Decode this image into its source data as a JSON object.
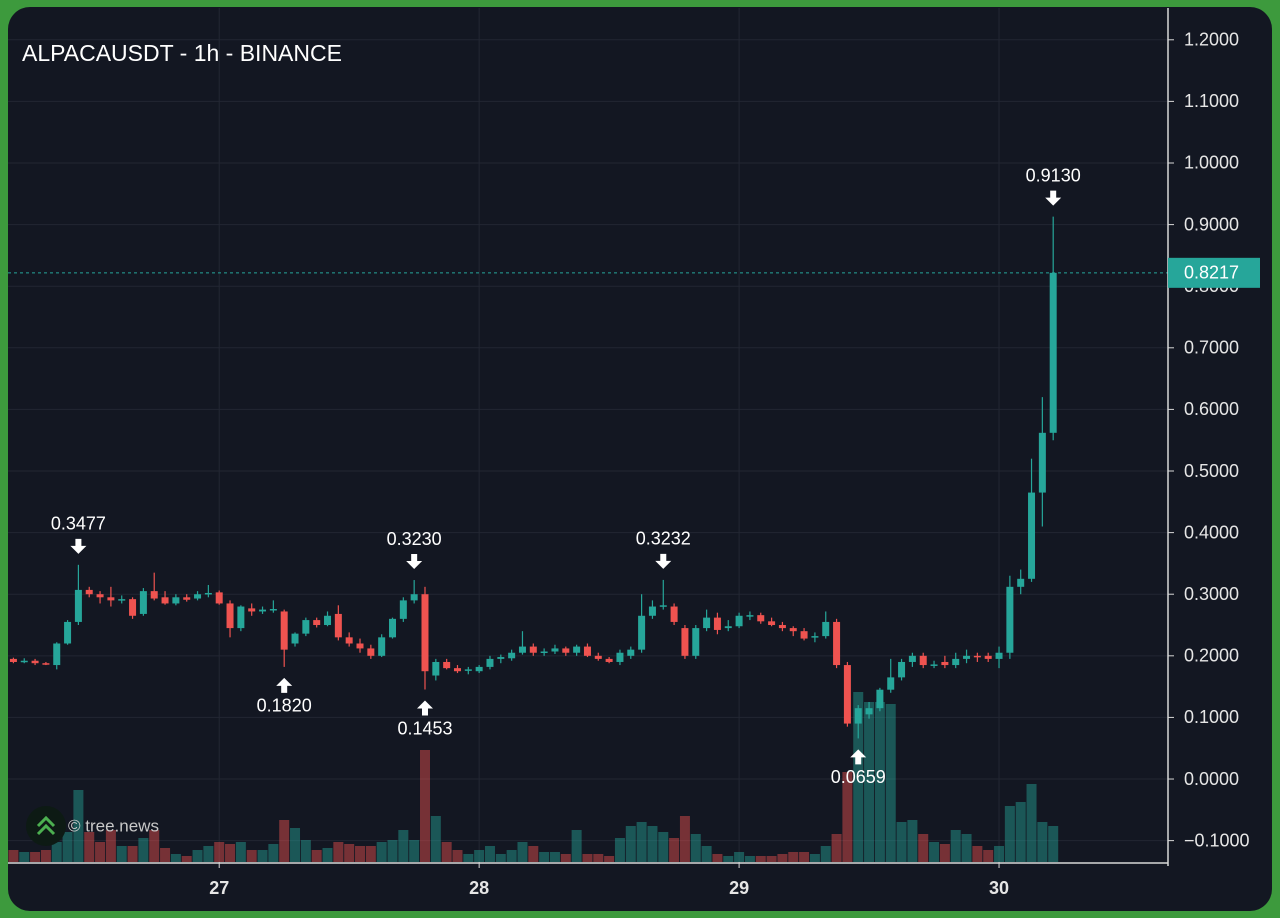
{
  "chart_data": {
    "type": "candlestick",
    "title": "ALPACAUSDT - 1h - BINANCE",
    "watermark": "© tree.news",
    "up_color": "#26a69a",
    "down_color": "#ef5350",
    "grid": true,
    "xlim": [
      -19.5,
      87.6
    ],
    "xticks": [
      {
        "value": 0,
        "label": "27"
      },
      {
        "value": 24,
        "label": "28"
      },
      {
        "value": 48,
        "label": "29"
      },
      {
        "value": 72,
        "label": "30"
      }
    ],
    "ylim": [
      -0.1347,
      1.2516
    ],
    "yticks": [
      {
        "value": 1.2,
        "label": "1.2000"
      },
      {
        "value": 1.1,
        "label": "1.1000"
      },
      {
        "value": 1.0,
        "label": "1.0000"
      },
      {
        "value": 0.9,
        "label": "0.9000"
      },
      {
        "value": 0.8,
        "label": "0.8000"
      },
      {
        "value": 0.7,
        "label": "0.7000"
      },
      {
        "value": 0.6,
        "label": "0.6000"
      },
      {
        "value": 0.5,
        "label": "0.5000"
      },
      {
        "value": 0.4,
        "label": "0.4000"
      },
      {
        "value": 0.3,
        "label": "0.3000"
      },
      {
        "value": 0.2,
        "label": "0.2000"
      },
      {
        "value": 0.1,
        "label": "0.1000"
      },
      {
        "value": 0,
        "label": "0.0000"
      },
      {
        "value": -0.1,
        "label": "−0.1000"
      }
    ],
    "x": [
      -19,
      -18,
      -17,
      -16,
      -15,
      -14,
      -13,
      -12,
      -11,
      -10,
      -9,
      -8,
      -7,
      -6,
      -5,
      -4,
      -3,
      -2,
      -1,
      0,
      1,
      2,
      3,
      4,
      5,
      6,
      7,
      8,
      9,
      10,
      11,
      12,
      13,
      14,
      15,
      16,
      17,
      18,
      19,
      20,
      21,
      22,
      23,
      24,
      25,
      26,
      27,
      28,
      29,
      30,
      31,
      32,
      33,
      34,
      35,
      36,
      37,
      38,
      39,
      40,
      41,
      42,
      43,
      44,
      45,
      46,
      47,
      48,
      49,
      50,
      51,
      52,
      53,
      54,
      55,
      56,
      57,
      58,
      59,
      60,
      61,
      62,
      63,
      64,
      65,
      66,
      67,
      68,
      69,
      70,
      71,
      72,
      73,
      74,
      75,
      76,
      77
    ],
    "open": [
      0.195,
      0.19,
      0.192,
      0.188,
      0.185,
      0.22,
      0.255,
      0.307,
      0.3,
      0.295,
      0.29,
      0.292,
      0.268,
      0.305,
      0.295,
      0.285,
      0.295,
      0.293,
      0.3,
      0.303,
      0.285,
      0.245,
      0.277,
      0.272,
      0.274,
      0.272,
      0.22,
      0.236,
      0.258,
      0.25,
      0.268,
      0.23,
      0.22,
      0.212,
      0.2,
      0.23,
      0.26,
      0.29,
      0.3,
      0.168,
      0.19,
      0.18,
      0.176,
      0.175,
      0.182,
      0.195,
      0.196,
      0.205,
      0.215,
      0.205,
      0.207,
      0.212,
      0.205,
      0.215,
      0.2,
      0.195,
      0.19,
      0.2,
      0.21,
      0.265,
      0.28,
      0.28,
      0.245,
      0.2,
      0.245,
      0.262,
      0.245,
      0.248,
      0.265,
      0.266,
      0.256,
      0.25,
      0.245,
      0.24,
      0.23,
      0.232,
      0.255,
      0.185,
      0.09,
      0.105,
      0.115,
      0.145,
      0.165,
      0.19,
      0.2,
      0.185,
      0.19,
      0.185,
      0.195,
      0.2,
      0.2,
      0.195,
      0.205,
      0.312,
      0.325,
      0.465,
      0.562
    ],
    "high": [
      0.197,
      0.196,
      0.195,
      0.19,
      0.222,
      0.258,
      0.3477,
      0.312,
      0.305,
      0.312,
      0.298,
      0.295,
      0.31,
      0.335,
      0.305,
      0.3,
      0.3,
      0.305,
      0.315,
      0.306,
      0.29,
      0.282,
      0.285,
      0.28,
      0.29,
      0.275,
      0.238,
      0.262,
      0.262,
      0.272,
      0.282,
      0.238,
      0.228,
      0.218,
      0.235,
      0.262,
      0.295,
      0.323,
      0.312,
      0.195,
      0.195,
      0.185,
      0.182,
      0.185,
      0.2,
      0.202,
      0.21,
      0.24,
      0.22,
      0.212,
      0.218,
      0.215,
      0.218,
      0.22,
      0.205,
      0.198,
      0.21,
      0.215,
      0.3,
      0.29,
      0.3232,
      0.285,
      0.25,
      0.25,
      0.275,
      0.27,
      0.258,
      0.27,
      0.272,
      0.27,
      0.262,
      0.255,
      0.248,
      0.245,
      0.238,
      0.272,
      0.26,
      0.19,
      0.12,
      0.125,
      0.148,
      0.195,
      0.195,
      0.205,
      0.205,
      0.192,
      0.2,
      0.205,
      0.21,
      0.205,
      0.205,
      0.215,
      0.33,
      0.34,
      0.52,
      0.62,
      0.913
    ],
    "low": [
      0.188,
      0.188,
      0.185,
      0.185,
      0.178,
      0.218,
      0.25,
      0.295,
      0.285,
      0.28,
      0.285,
      0.26,
      0.265,
      0.29,
      0.283,
      0.282,
      0.288,
      0.29,
      0.295,
      0.283,
      0.23,
      0.24,
      0.265,
      0.268,
      0.27,
      0.182,
      0.215,
      0.232,
      0.246,
      0.248,
      0.225,
      0.215,
      0.205,
      0.195,
      0.198,
      0.228,
      0.255,
      0.285,
      0.1453,
      0.16,
      0.178,
      0.172,
      0.17,
      0.172,
      0.178,
      0.188,
      0.192,
      0.202,
      0.2,
      0.2,
      0.203,
      0.2,
      0.2,
      0.198,
      0.192,
      0.188,
      0.185,
      0.195,
      0.205,
      0.26,
      0.275,
      0.25,
      0.195,
      0.195,
      0.24,
      0.235,
      0.24,
      0.245,
      0.258,
      0.252,
      0.248,
      0.24,
      0.232,
      0.225,
      0.222,
      0.228,
      0.18,
      0.085,
      0.0659,
      0.098,
      0.11,
      0.14,
      0.16,
      0.182,
      0.18,
      0.18,
      0.18,
      0.18,
      0.188,
      0.19,
      0.19,
      0.18,
      0.195,
      0.3,
      0.32,
      0.41,
      0.55
    ],
    "close": [
      0.19,
      0.192,
      0.188,
      0.186,
      0.22,
      0.255,
      0.307,
      0.3,
      0.295,
      0.29,
      0.292,
      0.265,
      0.305,
      0.293,
      0.285,
      0.295,
      0.291,
      0.3,
      0.302,
      0.285,
      0.245,
      0.28,
      0.272,
      0.275,
      0.276,
      0.21,
      0.236,
      0.258,
      0.25,
      0.265,
      0.23,
      0.22,
      0.212,
      0.2,
      0.23,
      0.26,
      0.29,
      0.3,
      0.175,
      0.19,
      0.18,
      0.175,
      0.178,
      0.182,
      0.195,
      0.198,
      0.205,
      0.215,
      0.205,
      0.207,
      0.212,
      0.205,
      0.215,
      0.2,
      0.195,
      0.19,
      0.205,
      0.21,
      0.265,
      0.28,
      0.282,
      0.255,
      0.2,
      0.245,
      0.262,
      0.242,
      0.248,
      0.265,
      0.266,
      0.256,
      0.25,
      0.245,
      0.24,
      0.228,
      0.232,
      0.255,
      0.185,
      0.09,
      0.115,
      0.115,
      0.145,
      0.165,
      0.19,
      0.2,
      0.185,
      0.186,
      0.185,
      0.195,
      0.2,
      0.198,
      0.195,
      0.205,
      0.312,
      0.325,
      0.465,
      0.562,
      0.8217
    ],
    "volume": [
      12,
      10,
      10,
      12,
      20,
      30,
      72,
      30,
      20,
      32,
      16,
      16,
      24,
      32,
      14,
      8,
      6,
      12,
      16,
      20,
      18,
      20,
      12,
      12,
      18,
      42,
      34,
      22,
      12,
      14,
      20,
      18,
      16,
      16,
      20,
      22,
      32,
      22,
      112,
      46,
      20,
      12,
      8,
      12,
      16,
      8,
      12,
      20,
      16,
      10,
      10,
      8,
      32,
      8,
      8,
      6,
      24,
      36,
      40,
      36,
      30,
      24,
      46,
      28,
      16,
      8,
      6,
      10,
      6,
      6,
      6,
      8,
      10,
      10,
      8,
      16,
      28,
      90,
      170,
      160,
      160,
      158,
      40,
      42,
      28,
      20,
      18,
      32,
      28,
      16,
      12,
      16,
      56,
      60,
      78,
      40,
      36
    ],
    "annotations": [
      {
        "x": -13,
        "value": 0.3477,
        "label": "0.3477",
        "position": "above"
      },
      {
        "x": 6,
        "value": 0.182,
        "label": "0.1820",
        "position": "below"
      },
      {
        "x": 18,
        "value": 0.323,
        "label": "0.3230",
        "position": "above"
      },
      {
        "x": 19,
        "value": 0.1453,
        "label": "0.1453",
        "position": "below"
      },
      {
        "x": 41,
        "value": 0.3232,
        "label": "0.3232",
        "position": "above"
      },
      {
        "x": 59,
        "value": 0.0659,
        "label": "0.0659",
        "position": "below"
      },
      {
        "x": 77,
        "value": 0.913,
        "label": "0.9130",
        "position": "above"
      }
    ],
    "last_price": {
      "value": 0.8217,
      "label": "0.8217"
    }
  }
}
